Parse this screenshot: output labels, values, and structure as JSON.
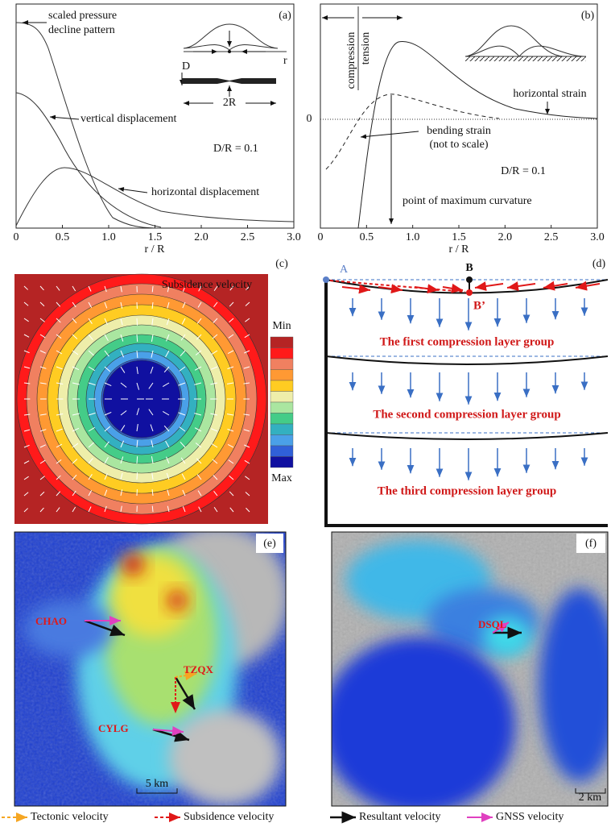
{
  "panels": {
    "a": {
      "label": "(a)",
      "xticks": [
        "0",
        "0.5",
        "1.0",
        "1.5",
        "2.0",
        "2.5",
        "3.0"
      ],
      "xlabel": "r / R",
      "annotations": [
        "scaled pressure",
        "decline pattern",
        "vertical displacement",
        "horizontal displacement",
        "D/R = 0.1",
        "D",
        "2R",
        "r"
      ]
    },
    "b": {
      "label": "(b)",
      "xticks": [
        "0",
        "0.5",
        "1.0",
        "1.5",
        "2.0",
        "2.5",
        "3.0"
      ],
      "yticks": [
        "0"
      ],
      "xlabel": "r / R",
      "annotations": [
        "compression",
        "tension",
        "horizontal strain",
        "bending strain",
        "(not to scale)",
        "D/R = 0.1",
        "point of maximum curvature"
      ]
    },
    "c": {
      "label": "(c)",
      "title": "Subsidence velocity",
      "legend_min": "Min",
      "legend_max": "Max"
    },
    "d": {
      "label": "(d)",
      "points": [
        "A",
        "B",
        "B’"
      ],
      "layers": [
        "The first compression layer group",
        "The second compression layer group",
        "The third compression layer group"
      ]
    },
    "e": {
      "label": "(e)",
      "stations": [
        "CHAO",
        "TZQX",
        "CYLG"
      ],
      "scale": "5 km"
    },
    "f": {
      "label": "(f)",
      "stations": [
        "DSQL"
      ],
      "scale": "2 km"
    }
  },
  "legend": [
    "Tectonic velocity",
    "Subsidence velocity",
    "Resultant velocity",
    "GNSS velocity"
  ]
}
